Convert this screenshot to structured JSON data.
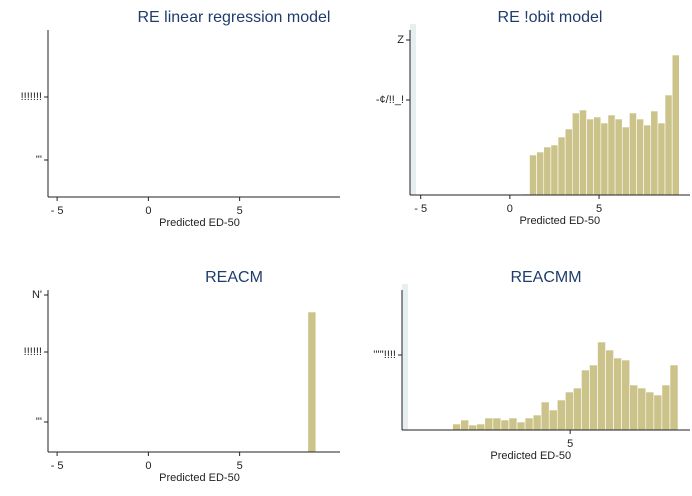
{
  "chart_data": [
    {
      "type": "histogram",
      "title": "RE linear regression model",
      "xlabel": "Predicted ED-50",
      "color": "#cbc38a",
      "bins": [],
      "counts": [],
      "xlim": [
        -5.5,
        10.5
      ],
      "ylim": [
        0,
        167
      ],
      "xticks": [
        {
          "value": -5,
          "label": "- 5"
        },
        0,
        5
      ],
      "yticks": [
        {
          "value": 100,
          "label": "!!!!!!!"
        },
        {
          "value": 37,
          "label": "'''"
        }
      ]
    },
    {
      "type": "histogram",
      "title": "RE !obit model",
      "xlabel": "Predicted ED-50",
      "color": "#cbc38a",
      "bins": [
        0.7,
        1.1,
        1.5,
        1.9,
        2.3,
        2.7,
        3.1,
        3.5,
        3.9,
        4.3,
        4.7,
        5.1,
        5.5,
        5.9,
        6.3,
        6.7,
        7.1,
        7.5,
        7.9,
        8.3,
        8.7,
        9.1,
        9.5
      ],
      "counts": [
        1,
        40,
        43,
        48,
        50,
        58,
        66,
        82,
        85,
        76,
        78,
        72,
        80,
        76,
        68,
        82,
        76,
        70,
        84,
        72,
        100,
        140
      ],
      "xlim": [
        -5.6,
        10.1
      ],
      "ylim": [
        0,
        165
      ],
      "xticks": [
        {
          "value": -5,
          "label": "- 5"
        },
        0,
        5
      ],
      "yticks": [
        {
          "value": 155,
          "label": "Z"
        },
        {
          "value": 95,
          "label": "-¢/!!_!"
        }
      ]
    },
    {
      "type": "histogram",
      "title": "REACM",
      "xlabel": "Predicted ED-50",
      "color": "#cbc38a",
      "bins": [
        8.74,
        9.18
      ],
      "counts": [
        140
      ],
      "xlim": [
        -5.5,
        10.5
      ],
      "ylim": [
        0,
        162
      ],
      "xticks": [
        {
          "value": -5,
          "label": "- 5"
        },
        0,
        5
      ],
      "yticks": [
        {
          "value": 157,
          "label": "N'"
        },
        {
          "value": 100,
          "label": "!!!!!!"
        },
        {
          "value": 30,
          "label": "'''"
        }
      ]
    },
    {
      "type": "histogram",
      "title": "REACMM",
      "xlabel": "Predicted ED-50",
      "color": "#cbc38a",
      "bins": [
        -1.57,
        -1.12,
        -0.67,
        -0.22,
        0.23,
        0.68,
        1.13,
        1.58,
        2.03,
        2.48,
        2.93,
        3.38,
        3.83,
        4.28,
        4.73,
        5.18,
        5.63,
        6.08,
        6.53,
        6.98,
        7.43,
        7.88,
        8.33,
        8.78,
        9.23,
        9.68,
        10.13,
        10.58,
        11.03
      ],
      "counts": [
        6,
        10,
        5,
        6,
        12,
        12,
        10,
        12,
        8,
        12,
        15,
        28,
        20,
        30,
        38,
        42,
        60,
        65,
        88,
        80,
        72,
        70,
        45,
        42,
        38,
        35,
        45,
        65
      ],
      "xlim": [
        -4.4,
        11.7
      ],
      "ylim": [
        0,
        140
      ],
      "xticks": [
        5
      ],
      "yticks": [
        {
          "value": 75,
          "label": "'''''!!!!"
        }
      ]
    }
  ]
}
